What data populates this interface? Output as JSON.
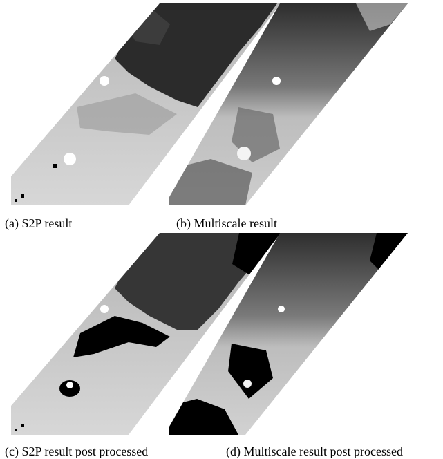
{
  "figure": {
    "panels": [
      {
        "id": "a",
        "caption": "(a) S2P result"
      },
      {
        "id": "b",
        "caption": "(b) Multiscale result"
      },
      {
        "id": "c",
        "caption": "(c) S2P result post processed"
      },
      {
        "id": "d",
        "caption": "(d) Multiscale result post processed"
      }
    ]
  }
}
